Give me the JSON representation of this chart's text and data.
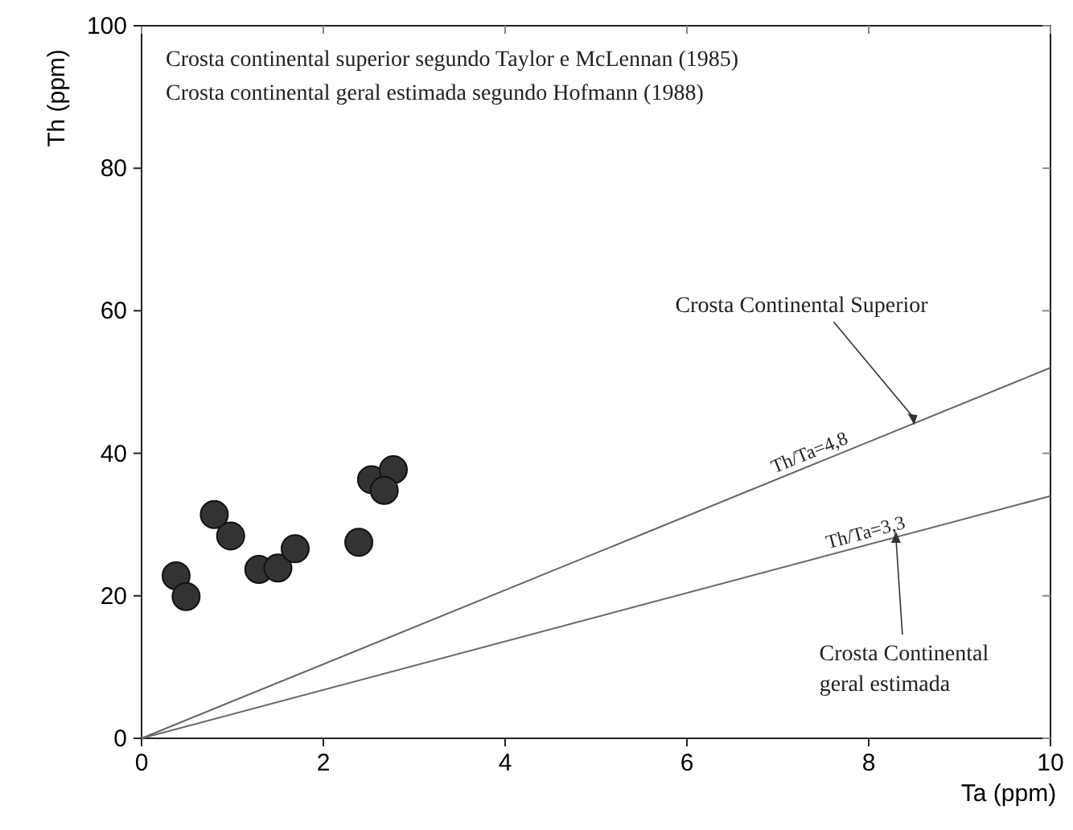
{
  "chart_data": {
    "type": "scatter",
    "xlabel": "Ta (ppm)",
    "ylabel": "Th (ppm)",
    "xlim": [
      0,
      10
    ],
    "ylim": [
      0,
      100
    ],
    "xticks": [
      0,
      2,
      4,
      6,
      8,
      10
    ],
    "yticks": [
      0,
      20,
      40,
      60,
      80,
      100
    ],
    "grid": false,
    "series": [
      {
        "color": "#333333",
        "marker": "circle",
        "x": [
          0.38,
          0.49,
          0.8,
          0.98,
          1.29,
          1.5,
          1.69,
          2.39,
          2.53,
          2.77,
          2.67
        ],
        "values": [
          22.8,
          19.9,
          31.4,
          28.4,
          23.7,
          23.9,
          26.6,
          27.5,
          36.3,
          37.7,
          34.8
        ]
      },
      {
        "type": "line",
        "name": "Th/Ta=4,8",
        "color": "#666666",
        "x": [
          0,
          10
        ],
        "values": [
          0,
          52
        ],
        "line_style": "solid"
      },
      {
        "type": "line",
        "name": "Th/Ta=3,3",
        "color": "#666666",
        "x": [
          0,
          10
        ],
        "values": [
          0,
          34
        ],
        "line_style": "solid"
      }
    ],
    "annotations": [
      "Crosta continental superior segundo Taylor e McLennan (1985)",
      "Crosta continental geral estimada segundo Hofmann (1988)",
      {
        "text": "Crosta Continental Superior",
        "x": 8.5,
        "y": 44
      },
      {
        "text": "Crosta Continental geral estimada",
        "x": 8.3,
        "y": 29
      }
    ]
  }
}
